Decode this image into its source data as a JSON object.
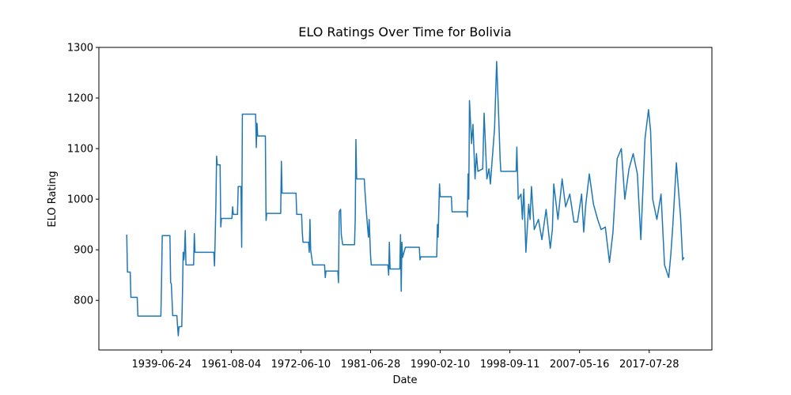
{
  "chart_data": {
    "type": "line",
    "title": "ELO Ratings Over Time for Bolivia",
    "xlabel": "Date",
    "ylabel": "ELO Rating",
    "color": "#1f77b4",
    "x": [
      0,
      1,
      5,
      6,
      15,
      16,
      49,
      50,
      51,
      62,
      63,
      64,
      66,
      72,
      73,
      74,
      75,
      79,
      80,
      81,
      82,
      83,
      84,
      85,
      96,
      97,
      98,
      99,
      125,
      126,
      127,
      128,
      129,
      130,
      134,
      135,
      136,
      151,
      152,
      153,
      159,
      160,
      164,
      165,
      166,
      185,
      186,
      187,
      188,
      199,
      200,
      201,
      221,
      222,
      223,
      243,
      244,
      251,
      252,
      253,
      261,
      262,
      263,
      264,
      267,
      284,
      285,
      286,
      293,
      303,
      304,
      305,
      307,
      308,
      310,
      327,
      328,
      329,
      330,
      341,
      342,
      344,
      346,
      347,
      348,
      350,
      351,
      375,
      376,
      377,
      378,
      392,
      393,
      394,
      395,
      396,
      400,
      420,
      421,
      422,
      445,
      446,
      447,
      449,
      450,
      466,
      467,
      477,
      488,
      489,
      490,
      491,
      492,
      495,
      497,
      500,
      502,
      504,
      511,
      513,
      517,
      520,
      522,
      528,
      531,
      534,
      536,
      537,
      545,
      559,
      560,
      562,
      566,
      568,
      570,
      573,
      577,
      579,
      581,
      585,
      591,
      596,
      602,
      608,
      611,
      613,
      619,
      625,
      630,
      636,
      642,
      647,
      653,
      656,
      659,
      664,
      670,
      676,
      681,
      687,
      693,
      698,
      704,
      710,
      715,
      721,
      727,
      733,
      738,
      744,
      749,
      752,
      755,
      761,
      767,
      772,
      778,
      781,
      784,
      789,
      795,
      798,
      800
    ],
    "values": [
      930,
      856,
      856,
      806,
      806,
      769,
      769,
      840,
      928,
      928,
      835,
      833,
      770,
      770,
      748,
      730,
      748,
      748,
      812,
      895,
      880,
      897,
      938,
      870,
      870,
      932,
      895,
      895,
      895,
      868,
      925,
      990,
      1085,
      1068,
      1068,
      945,
      962,
      962,
      985,
      970,
      970,
      1025,
      1025,
      905,
      1168,
      1168,
      1102,
      1150,
      1125,
      1125,
      958,
      972,
      972,
      1075,
      1012,
      1012,
      970,
      970,
      935,
      915,
      915,
      895,
      960,
      900,
      870,
      870,
      845,
      858,
      858,
      858,
      835,
      975,
      980,
      930,
      910,
      910,
      960,
      1118,
      1040,
      1040,
      1015,
      975,
      940,
      925,
      960,
      888,
      870,
      870,
      850,
      915,
      862,
      862,
      930,
      818,
      915,
      885,
      905,
      905,
      880,
      886,
      886,
      950,
      925,
      1030,
      1005,
      1005,
      975,
      975,
      975,
      965,
      1050,
      1000,
      1195,
      1110,
      1148,
      1040,
      1090,
      1055,
      1060,
      1170,
      1040,
      1060,
      1030,
      1140,
      1272,
      1160,
      1080,
      1055,
      1055,
      1055,
      1103,
      1000,
      1010,
      960,
      1020,
      895,
      990,
      960,
      1025,
      940,
      960,
      920,
      980,
      903,
      940,
      1030,
      960,
      1040,
      985,
      1010,
      955,
      955,
      1010,
      935,
      990,
      1050,
      990,
      960,
      940,
      945,
      875,
      935,
      1080,
      1100,
      1000,
      1060,
      1090,
      1050,
      920,
      1120,
      1177,
      1135,
      1000,
      960,
      1010,
      870,
      845,
      890,
      950,
      1072,
      965,
      880,
      885
    ],
    "xlim": [
      -40,
      840
    ],
    "xticks": [
      {
        "value": 50,
        "label": "1939-06-24"
      },
      {
        "value": 150,
        "label": "1961-08-04"
      },
      {
        "value": 250,
        "label": "1972-06-10"
      },
      {
        "value": 350,
        "label": "1981-06-28"
      },
      {
        "value": 450,
        "label": "1990-02-10"
      },
      {
        "value": 550,
        "label": "1998-09-11"
      },
      {
        "value": 650,
        "label": "2007-05-16"
      },
      {
        "value": 750,
        "label": "2017-07-28"
      }
    ],
    "ylim": [
      702,
      1300
    ],
    "yticks": [
      800,
      900,
      1000,
      1100,
      1200,
      1300
    ]
  }
}
